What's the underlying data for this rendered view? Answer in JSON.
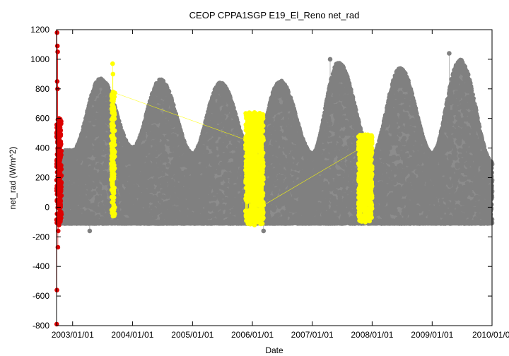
{
  "chart_data": {
    "type": "scatter",
    "title": "CEOP CPPA1SGP E19_El_Reno  net_rad",
    "xlabel": "Date",
    "ylabel": "net_rad (W/m^2)",
    "ylim": [
      -800,
      1200
    ],
    "yticks": [
      -800,
      -600,
      -400,
      -200,
      0,
      200,
      400,
      600,
      800,
      1000,
      1200
    ],
    "xlim": [
      "2002-09-25",
      "2010-01-01"
    ],
    "xticks": [
      {
        "date": "2003-01-01",
        "label": "2003/01/01"
      },
      {
        "date": "2004-01-01",
        "label": "2004/01/01"
      },
      {
        "date": "2005-01-01",
        "label": "2005/01/01"
      },
      {
        "date": "2006-01-01",
        "label": "2006/01/01"
      },
      {
        "date": "2007-01-01",
        "label": "2007/01/01"
      },
      {
        "date": "2008-01-01",
        "label": "2008/01/01"
      },
      {
        "date": "2009-01-01",
        "label": "2009/01/01"
      },
      {
        "date": "2010-01-01",
        "label": "2010/01/01"
      }
    ],
    "grid": false,
    "legend": "none",
    "colors": {
      "good": "#808080",
      "questionable": "#ffff00",
      "bad": "#dd0000"
    },
    "series": [
      {
        "color_key": "good",
        "summary": {
          "start": "2002-10-20",
          "end": "2010-01-01",
          "night_min": -110,
          "annual_daytime_peaks": [
            {
              "date": "2003-06-20",
              "value": 910
            },
            {
              "date": "2004-06-20",
              "value": 900
            },
            {
              "date": "2005-06-20",
              "value": 880
            },
            {
              "date": "2006-06-20",
              "value": 890
            },
            {
              "date": "2007-06-10",
              "value": 1020
            },
            {
              "date": "2008-06-20",
              "value": 980
            },
            {
              "date": "2009-06-20",
              "value": 1040
            }
          ],
          "winter_daytime_peaks": [
            {
              "date": "2003-01-01",
              "value": 400
            },
            {
              "date": "2004-01-01",
              "value": 420
            },
            {
              "date": "2005-01-01",
              "value": 380
            },
            {
              "date": "2006-01-01",
              "value": 380
            },
            {
              "date": "2007-01-01",
              "value": 380
            },
            {
              "date": "2008-01-01",
              "value": 380
            },
            {
              "date": "2009-01-01",
              "value": 380
            },
            {
              "date": "2010-01-01",
              "value": 320
            }
          ],
          "outliers": [
            {
              "date": "2003-04-15",
              "value": -160
            },
            {
              "date": "2006-03-10",
              "value": -160
            },
            {
              "date": "2007-04-20",
              "value": 1000
            },
            {
              "date": "2009-04-15",
              "value": 1040
            }
          ]
        }
      },
      {
        "color_key": "questionable",
        "ranges": [
          {
            "start": "2003-08-25",
            "end": "2003-09-15",
            "min": -60,
            "max": 780
          },
          {
            "start": "2005-11-20",
            "end": "2006-03-10",
            "min": -120,
            "max": 640
          },
          {
            "start": "2007-10-10",
            "end": "2008-01-01",
            "min": -100,
            "max": 490
          }
        ],
        "outliers": [
          {
            "date": "2003-09-02",
            "value": 970
          },
          {
            "date": "2003-09-04",
            "value": 900
          }
        ]
      },
      {
        "color_key": "bad",
        "range": {
          "start": "2002-09-25",
          "end": "2002-10-25",
          "min": -120,
          "max": 600
        },
        "outliers": [
          {
            "date": "2002-09-28",
            "value": 1180
          },
          {
            "date": "2002-09-30",
            "value": 1090
          },
          {
            "date": "2002-10-02",
            "value": 1050
          },
          {
            "date": "2002-10-01",
            "value": 800
          },
          {
            "date": "2002-09-29",
            "value": 850
          },
          {
            "date": "2002-10-03",
            "value": -270
          },
          {
            "date": "2002-09-27",
            "value": -560
          },
          {
            "date": "2002-09-26",
            "value": -790
          },
          {
            "date": "2002-10-05",
            "value": -160
          }
        ]
      }
    ]
  }
}
